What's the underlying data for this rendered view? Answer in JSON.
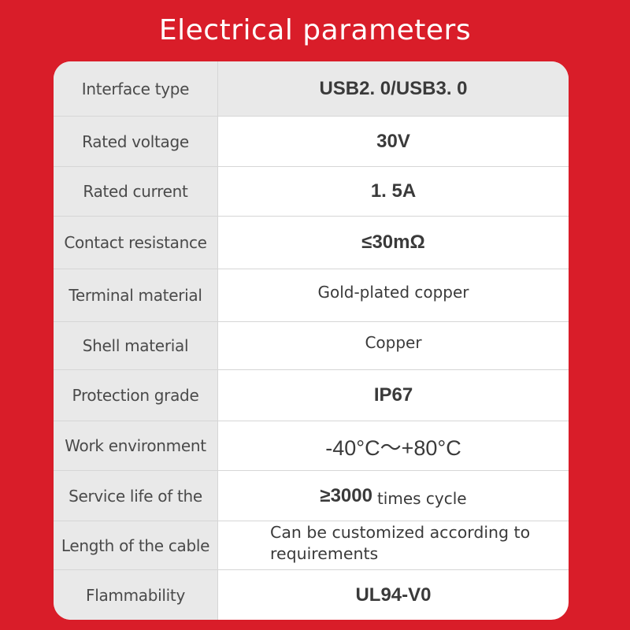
{
  "title": "Electrical parameters",
  "rows": [
    {
      "label": "Interface type",
      "value": "USB2. 0/USB3. 0"
    },
    {
      "label": "Rated voltage",
      "value": "30V"
    },
    {
      "label": "Rated current",
      "value": "1. 5A"
    },
    {
      "label": "Contact resistance",
      "value": "≤30mΩ"
    },
    {
      "label": "Terminal material",
      "value": "Gold-plated copper"
    },
    {
      "label": "Shell material",
      "value": "Copper"
    },
    {
      "label": "Protection grade",
      "value": "IP67"
    },
    {
      "label": "Work environment",
      "value": "-40°C～+80°C"
    },
    {
      "label": "Service life of the",
      "value": "≥3000",
      "value_suffix": "times cycle"
    },
    {
      "label": "Length of the cable",
      "value": "Can be customized according to requirements"
    },
    {
      "label": "Flammability",
      "value": "UL94-V0"
    }
  ],
  "colors": {
    "background": "#d91d29",
    "label_cell": "#e9e9e9",
    "text": "#3a3a3a"
  }
}
